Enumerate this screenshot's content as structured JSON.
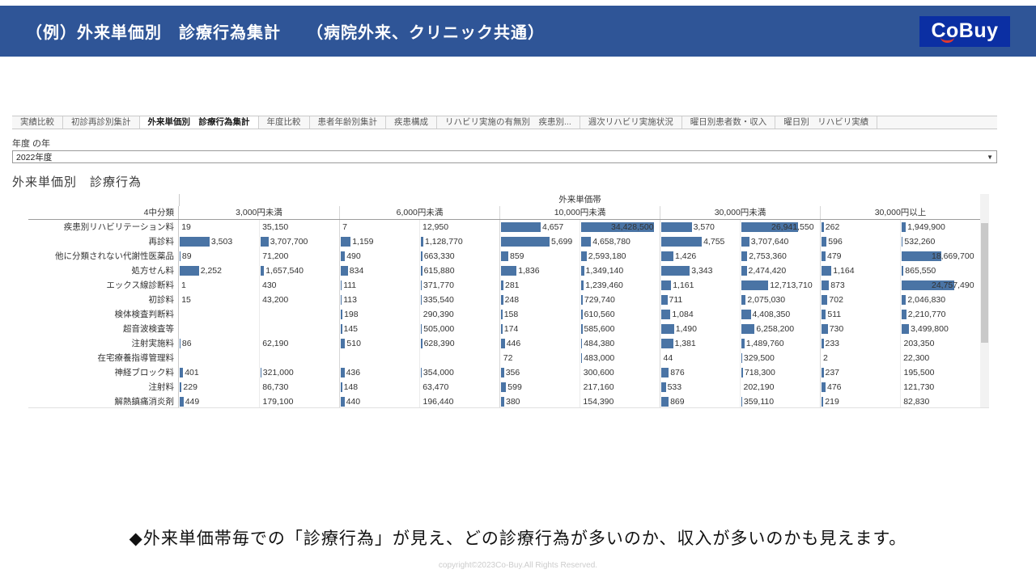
{
  "header": {
    "title": "（例）外来単価別　診療行為集計　　（病院外来、クリニック共通）",
    "logo_text": "CoBuy"
  },
  "colors": {
    "header_bg": "#2f5597",
    "logo_bg": "#0b2fa3",
    "logo_smile": "#e0392e",
    "bar": "#4a74a5"
  },
  "tabs": [
    {
      "label": "実績比較",
      "active": false
    },
    {
      "label": "初診再診別集計",
      "active": false
    },
    {
      "label": "外来単価別　診療行為集計",
      "active": true
    },
    {
      "label": "年度比較",
      "active": false
    },
    {
      "label": "患者年齢別集計",
      "active": false
    },
    {
      "label": "疾患構成",
      "active": false
    },
    {
      "label": "リハビリ実施の有無別　疾患別...",
      "active": false
    },
    {
      "label": "週次リハビリ実施状況",
      "active": false
    },
    {
      "label": "曜日別患者数・収入",
      "active": false
    },
    {
      "label": "曜日別　リハビリ実績",
      "active": false
    }
  ],
  "filter": {
    "label": "年度 の年",
    "value": "2022年度",
    "arrow": "▼"
  },
  "chart": {
    "title": "外来単価別　診療行為",
    "band_axis_label": "外来単価帯",
    "row_header": "4中分類",
    "bands": [
      "3,000円未満",
      "6,000円未満",
      "10,000円未満",
      "30,000円未満",
      "30,000円以上"
    ],
    "rows": [
      {
        "label": "疾患別リハビリテーション料",
        "cells": [
          [
            "19",
            "35,150"
          ],
          [
            "7",
            "12,950"
          ],
          [
            "4,657",
            "34,428,500"
          ],
          [
            "3,570",
            "26,941,550"
          ],
          [
            "262",
            "1,949,900"
          ]
        ]
      },
      {
        "label": "再診料",
        "cells": [
          [
            "3,503",
            "3,707,700"
          ],
          [
            "1,159",
            "1,128,770"
          ],
          [
            "5,699",
            "4,658,780"
          ],
          [
            "4,755",
            "3,707,640"
          ],
          [
            "596",
            "532,260"
          ]
        ]
      },
      {
        "label": "他に分類されない代謝性医薬品",
        "cells": [
          [
            "89",
            "71,200"
          ],
          [
            "490",
            "663,330"
          ],
          [
            "859",
            "2,593,180"
          ],
          [
            "1,426",
            "2,753,360"
          ],
          [
            "479",
            "18,669,700"
          ]
        ]
      },
      {
        "label": "処方せん料",
        "cells": [
          [
            "2,252",
            "1,657,540"
          ],
          [
            "834",
            "615,880"
          ],
          [
            "1,836",
            "1,349,140"
          ],
          [
            "3,343",
            "2,474,420"
          ],
          [
            "1,164",
            "865,550"
          ]
        ]
      },
      {
        "label": "エックス線診断料",
        "cells": [
          [
            "1",
            "430"
          ],
          [
            "111",
            "371,770"
          ],
          [
            "281",
            "1,239,460"
          ],
          [
            "1,161",
            "12,713,710"
          ],
          [
            "873",
            "24,757,490"
          ]
        ]
      },
      {
        "label": "初診料",
        "cells": [
          [
            "15",
            "43,200"
          ],
          [
            "113",
            "335,540"
          ],
          [
            "248",
            "729,740"
          ],
          [
            "711",
            "2,075,030"
          ],
          [
            "702",
            "2,046,830"
          ]
        ]
      },
      {
        "label": "検体検査判断料",
        "cells": [
          [
            "",
            ""
          ],
          [
            "198",
            "290,390"
          ],
          [
            "158",
            "610,560"
          ],
          [
            "1,084",
            "4,408,350"
          ],
          [
            "511",
            "2,210,770"
          ]
        ]
      },
      {
        "label": "超音波検査等",
        "cells": [
          [
            "",
            ""
          ],
          [
            "145",
            "505,000"
          ],
          [
            "174",
            "585,600"
          ],
          [
            "1,490",
            "6,258,200"
          ],
          [
            "730",
            "3,499,800"
          ]
        ]
      },
      {
        "label": "注射実施料",
        "cells": [
          [
            "86",
            "62,190"
          ],
          [
            "510",
            "628,390"
          ],
          [
            "446",
            "484,380"
          ],
          [
            "1,381",
            "1,489,760"
          ],
          [
            "233",
            "203,350"
          ]
        ]
      },
      {
        "label": "在宅療養指導管理料",
        "cells": [
          [
            "",
            ""
          ],
          [
            "",
            ""
          ],
          [
            "72",
            "483,000"
          ],
          [
            "44",
            "329,500"
          ],
          [
            "2",
            "22,300"
          ]
        ]
      },
      {
        "label": "神経ブロック料",
        "cells": [
          [
            "401",
            "321,000"
          ],
          [
            "436",
            "354,000"
          ],
          [
            "356",
            "300,600"
          ],
          [
            "876",
            "718,300"
          ],
          [
            "237",
            "195,500"
          ]
        ]
      },
      {
        "label": "注射料",
        "cells": [
          [
            "229",
            "86,730"
          ],
          [
            "148",
            "63,470"
          ],
          [
            "599",
            "217,160"
          ],
          [
            "533",
            "202,190"
          ],
          [
            "476",
            "121,730"
          ]
        ]
      },
      {
        "label": "解熱鎮痛消炎剤",
        "cells": [
          [
            "449",
            "179,100"
          ],
          [
            "440",
            "196,440"
          ],
          [
            "380",
            "154,390"
          ],
          [
            "869",
            "359,110"
          ],
          [
            "219",
            "82,830"
          ]
        ]
      }
    ]
  },
  "caption": "◆外来単価帯毎での「診療行為」が見え、どの診療行為が多いのか、収入が多いのかも見えます。",
  "copyright": "copyright©2023Co-Buy.All Rights Reserved."
}
